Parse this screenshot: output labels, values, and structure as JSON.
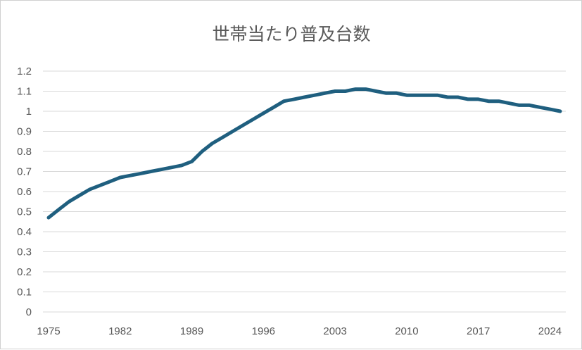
{
  "chart_data": {
    "type": "line",
    "title": "世帯当たり普及台数",
    "xlabel": "",
    "ylabel": "",
    "xlim": [
      1975,
      2025
    ],
    "ylim": [
      0,
      1.2
    ],
    "x_ticks": [
      "1975",
      "1982",
      "1989",
      "1996",
      "2003",
      "2010",
      "2017",
      "2024"
    ],
    "y_ticks": [
      "0",
      "0.1",
      "0.2",
      "0.3",
      "0.4",
      "0.5",
      "0.6",
      "0.7",
      "0.8",
      "0.9",
      "1",
      "1.1",
      "1.2"
    ],
    "grid": true,
    "legend": "none",
    "colors": {
      "series": "#1f5f7f",
      "grid": "#d9d9d9",
      "text": "#595959"
    },
    "series": [
      {
        "x": [
          1975,
          1976,
          1977,
          1978,
          1979,
          1980,
          1981,
          1982,
          1983,
          1984,
          1985,
          1986,
          1987,
          1988,
          1989,
          1990,
          1991,
          1992,
          1993,
          1994,
          1995,
          1996,
          1997,
          1998,
          1999,
          2000,
          2001,
          2002,
          2003,
          2004,
          2005,
          2006,
          2007,
          2008,
          2009,
          2010,
          2011,
          2012,
          2013,
          2014,
          2015,
          2016,
          2017,
          2018,
          2019,
          2020,
          2021,
          2022,
          2023,
          2024,
          2025
        ],
        "values": [
          0.47,
          0.51,
          0.55,
          0.58,
          0.61,
          0.63,
          0.65,
          0.67,
          0.68,
          0.69,
          0.7,
          0.71,
          0.72,
          0.73,
          0.75,
          0.8,
          0.84,
          0.87,
          0.9,
          0.93,
          0.96,
          0.99,
          1.02,
          1.05,
          1.06,
          1.07,
          1.08,
          1.09,
          1.1,
          1.1,
          1.11,
          1.11,
          1.1,
          1.09,
          1.09,
          1.08,
          1.08,
          1.08,
          1.08,
          1.07,
          1.07,
          1.06,
          1.06,
          1.05,
          1.05,
          1.04,
          1.03,
          1.03,
          1.02,
          1.01,
          1.0
        ]
      }
    ]
  }
}
